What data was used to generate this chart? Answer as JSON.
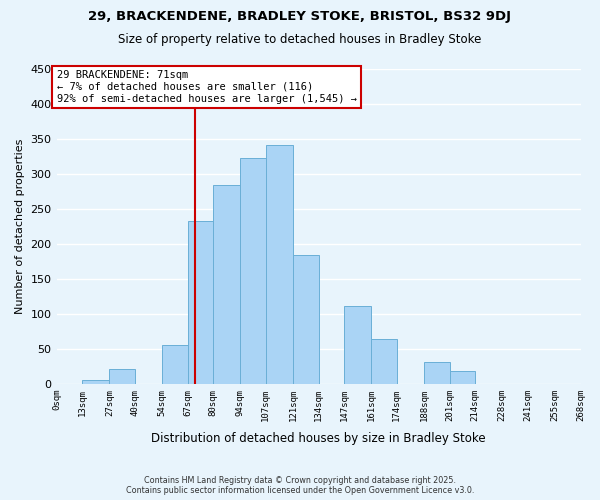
{
  "title1": "29, BRACKENDENE, BRADLEY STOKE, BRISTOL, BS32 9DJ",
  "title2": "Size of property relative to detached houses in Bradley Stoke",
  "xlabel": "Distribution of detached houses by size in Bradley Stoke",
  "ylabel": "Number of detached properties",
  "bin_labels": [
    "0sqm",
    "13sqm",
    "27sqm",
    "40sqm",
    "54sqm",
    "67sqm",
    "80sqm",
    "94sqm",
    "107sqm",
    "121sqm",
    "134sqm",
    "147sqm",
    "161sqm",
    "174sqm",
    "188sqm",
    "201sqm",
    "214sqm",
    "228sqm",
    "241sqm",
    "255sqm",
    "268sqm"
  ],
  "bin_edges": [
    0,
    13,
    27,
    40,
    54,
    67,
    80,
    94,
    107,
    121,
    134,
    147,
    161,
    174,
    188,
    201,
    214,
    228,
    241,
    255,
    268
  ],
  "bar_heights": [
    0,
    6,
    21,
    0,
    56,
    232,
    284,
    323,
    342,
    184,
    0,
    111,
    64,
    0,
    31,
    18,
    0,
    0,
    0,
    0
  ],
  "bar_color": "#aad4f5",
  "bar_edge_color": "#6aafd6",
  "bg_color": "#e8f4fc",
  "grid_color": "#ffffff",
  "vline_x": 71,
  "vline_color": "#cc0000",
  "annotation_text": "29 BRACKENDENE: 71sqm\n← 7% of detached houses are smaller (116)\n92% of semi-detached houses are larger (1,545) →",
  "annotation_box_color": "#ffffff",
  "annotation_box_edge": "#cc0000",
  "ylim": [
    0,
    450
  ],
  "yticks": [
    0,
    50,
    100,
    150,
    200,
    250,
    300,
    350,
    400,
    450
  ],
  "footer1": "Contains HM Land Registry data © Crown copyright and database right 2025.",
  "footer2": "Contains public sector information licensed under the Open Government Licence v3.0."
}
